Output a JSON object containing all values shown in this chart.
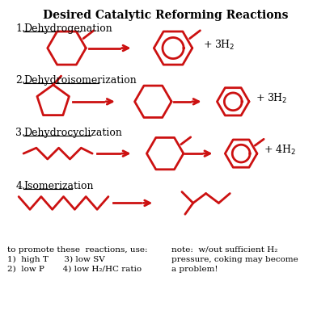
{
  "title": "Desired Catalytic Reforming Reactions",
  "bg_color": "#ffffff",
  "draw_color": "#cc1111",
  "text_color": "#000000",
  "figsize": [
    4.13,
    4.0
  ],
  "dpi": 100,
  "reactions": [
    {
      "number": "1.",
      "name": "Dehydrogenation"
    },
    {
      "number": "2.",
      "name": "Dehydroisomerization"
    },
    {
      "number": "3.",
      "name": "Dehydrocyclization"
    },
    {
      "number": "4.",
      "name": "Isomerization"
    }
  ],
  "bottom_left_1": "to promote these  reactions, use:",
  "bottom_left_2": "1)  high T      3) low SV",
  "bottom_left_3": "2)  low P       4) low H₂/HC ratio",
  "bottom_right_1": "note:  w/out sufficient H₂",
  "bottom_right_2": "pressure, coking may become",
  "bottom_right_3": "a problem!"
}
